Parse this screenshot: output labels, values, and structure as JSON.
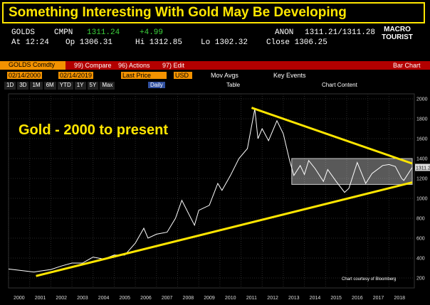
{
  "terminal": {
    "ticker": "GOLDS",
    "source": "CMPN",
    "last": "1311.24",
    "change": "+4.99",
    "contributor": "ANON",
    "bid_ask": "1311.21/1311.28",
    "time": "At 12:24",
    "open": "Op 1306.31",
    "high": "Hi 1312.85",
    "low": "Lo 1302.32",
    "close": "Close 1306.25",
    "security": "GOLDS Comdty",
    "menu": [
      "99) Compare",
      "96) Actions",
      "97) Edit"
    ],
    "chart_kind": "Bar Chart",
    "start_date": "02/14/2000",
    "end_date": "02/14/2019",
    "field": "Last Price",
    "currency": "USD",
    "toggles": [
      "Mov Avgs",
      "Key Events"
    ],
    "periods": [
      "1D",
      "3D",
      "1M",
      "6M",
      "YTD",
      "1Y",
      "5Y",
      "Max"
    ],
    "frequency": "Daily",
    "table": "Table",
    "content": "Chart Content",
    "logo": [
      "MACRO",
      "TOURIST"
    ],
    "last_tag": "1311.2"
  },
  "chart_data": {
    "type": "line",
    "title": "Something Interesting With Gold May Be Developing",
    "annotation": "Gold - 2000 to present",
    "credit": "Chart courtesy of Bloomberg",
    "color": "#ffffff",
    "x": [
      2000.0,
      2000.6,
      2001.2,
      2001.5,
      2002.0,
      2002.5,
      2003.0,
      2003.5,
      2004.0,
      2004.5,
      2005.0,
      2005.5,
      2006.0,
      2006.4,
      2006.6,
      2007.0,
      2007.5,
      2007.9,
      2008.2,
      2008.8,
      2009.0,
      2009.5,
      2009.9,
      2010.1,
      2010.5,
      2010.9,
      2011.3,
      2011.65,
      2011.8,
      2012.0,
      2012.3,
      2012.7,
      2013.0,
      2013.3,
      2013.5,
      2013.8,
      2014.0,
      2014.2,
      2014.5,
      2014.9,
      2015.1,
      2015.5,
      2015.9,
      2016.1,
      2016.5,
      2016.9,
      2017.2,
      2017.7,
      2018.0,
      2018.3,
      2018.6,
      2018.7,
      2019.1
    ],
    "values": [
      290,
      275,
      260,
      270,
      285,
      320,
      350,
      350,
      410,
      390,
      430,
      430,
      550,
      700,
      600,
      640,
      660,
      800,
      980,
      730,
      880,
      930,
      1150,
      1080,
      1230,
      1400,
      1500,
      1900,
      1600,
      1700,
      1580,
      1780,
      1650,
      1380,
      1230,
      1330,
      1240,
      1380,
      1300,
      1170,
      1290,
      1170,
      1060,
      1100,
      1360,
      1150,
      1250,
      1330,
      1340,
      1320,
      1200,
      1180,
      1311
    ],
    "trendlines": [
      {
        "color": "#ffe600",
        "x": [
          2001.3,
          2019.1
        ],
        "values": [
          220,
          1160
        ]
      },
      {
        "color": "#ffe600",
        "x": [
          2011.5,
          2019.1
        ],
        "values": [
          1910,
          1350
        ]
      }
    ],
    "range_box": {
      "x": [
        2013.4,
        2019.1
      ],
      "values": [
        1140,
        1400
      ]
    },
    "xlim": [
      2000,
      2019.2
    ],
    "xticks": [
      2000,
      2001,
      2002,
      2003,
      2004,
      2005,
      2006,
      2007,
      2008,
      2009,
      2010,
      2011,
      2012,
      2013,
      2014,
      2015,
      2016,
      2017,
      2018
    ],
    "ylim": [
      100,
      2050
    ],
    "yticks": [
      200,
      400,
      600,
      800,
      1000,
      1200,
      1400,
      1600,
      1800,
      2000
    ],
    "grid": true
  }
}
